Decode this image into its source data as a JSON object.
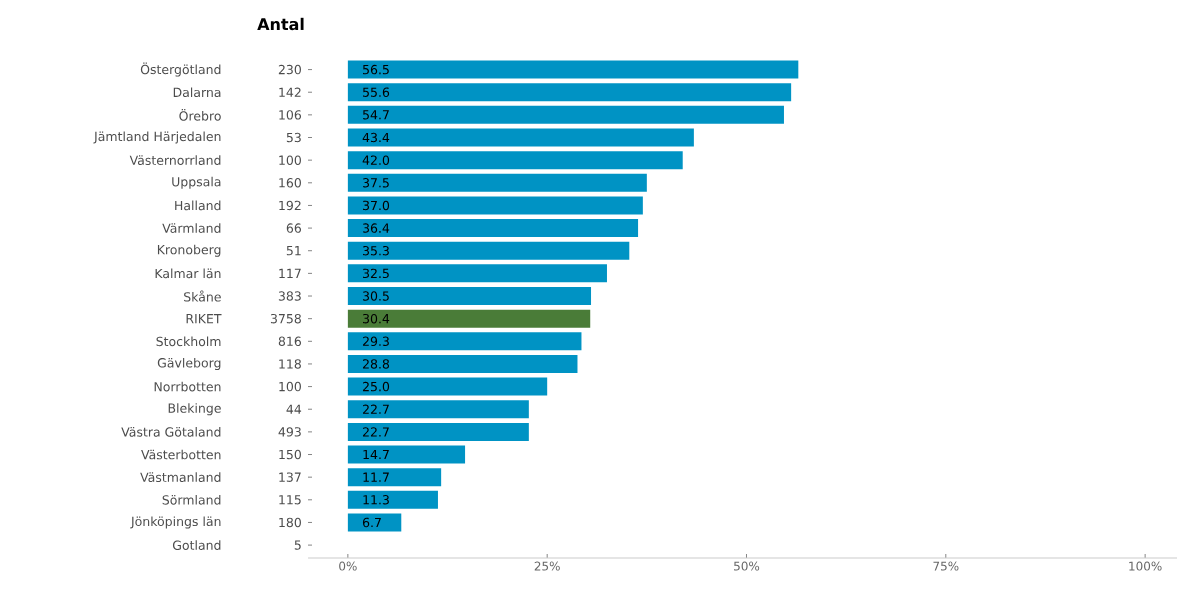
{
  "chart_data": {
    "type": "bar",
    "orientation": "horizontal",
    "title": "Antal",
    "categories": [
      "Östergötland",
      "Dalarna",
      "Örebro",
      "Jämtland Härjedalen",
      "Västernorrland",
      "Uppsala",
      "Halland",
      "Värmland",
      "Kronoberg",
      "Kalmar län",
      "Skåne",
      "RIKET",
      "Stockholm",
      "Gävleborg",
      "Norrbotten",
      "Blekinge",
      "Västra Götaland",
      "Västerbotten",
      "Västmanland",
      "Sörmland",
      "Jönköpings län",
      "Gotland"
    ],
    "values": [
      56.5,
      55.6,
      54.7,
      43.4,
      42.0,
      37.5,
      37.0,
      36.4,
      35.3,
      32.5,
      30.5,
      30.4,
      29.3,
      28.8,
      25.0,
      22.7,
      22.7,
      14.7,
      11.7,
      11.3,
      6.7,
      null
    ],
    "value_labels": [
      "56.5",
      "55.6",
      "54.7",
      "43.4",
      "42.0",
      "37.5",
      "37.0",
      "36.4",
      "35.3",
      "32.5",
      "30.5",
      "30.4",
      "29.3",
      "28.8",
      "25.0",
      "22.7",
      "22.7",
      "14.7",
      "11.7",
      "11.3",
      "6.7",
      null
    ],
    "colors": [
      "#0093c4",
      "#0093c4",
      "#0093c4",
      "#0093c4",
      "#0093c4",
      "#0093c4",
      "#0093c4",
      "#0093c4",
      "#0093c4",
      "#0093c4",
      "#0093c4",
      "#4a7c38",
      "#0093c4",
      "#0093c4",
      "#0093c4",
      "#0093c4",
      "#0093c4",
      "#0093c4",
      "#0093c4",
      "#0093c4",
      "#0093c4",
      "#0093c4"
    ],
    "annotations": [
      "230",
      "142",
      "106",
      "53",
      "100",
      "160",
      "192",
      "66",
      "51",
      "117",
      "383",
      "3758",
      "816",
      "118",
      "100",
      "44",
      "493",
      "150",
      "137",
      "115",
      "180",
      "5"
    ],
    "xlim": [
      -5,
      104
    ],
    "xticks": [
      {
        "value": 0,
        "label": "0%"
      },
      {
        "value": 25,
        "label": "25%"
      },
      {
        "value": 50,
        "label": "50%"
      },
      {
        "value": 75,
        "label": "75%"
      },
      {
        "value": 100,
        "label": "100%"
      }
    ]
  }
}
